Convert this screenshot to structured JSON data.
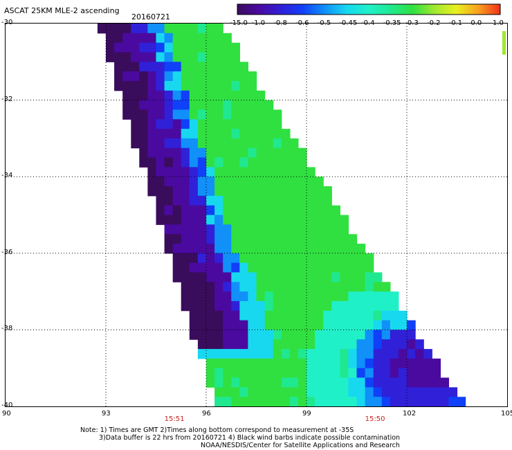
{
  "title": "ASCAT 25KM MLE-2 ascending",
  "date": "20160721",
  "colorbar": {
    "labels": [
      "-15.0",
      "-1.0",
      "-0.8",
      "-0.6",
      "-0.5",
      "-0.45",
      "-0.4",
      "-0.35",
      "-0.3",
      "-0.2",
      "-0.1",
      "0.0",
      "1.0"
    ],
    "colors": [
      "#3a0c5c",
      "#4a0aa0",
      "#3020d8",
      "#1040f8",
      "#1090f8",
      "#18d8f0",
      "#20f0c8",
      "#20e890",
      "#30e040",
      "#a0e830",
      "#e8f020",
      "#f8a020",
      "#f03018"
    ]
  },
  "axes": {
    "lat_labels": [
      "-30",
      "-32",
      "-34",
      "-36",
      "-38",
      "-40"
    ],
    "lon_labels": [
      "90",
      "93",
      "96",
      "99",
      "102",
      "105"
    ],
    "lat_range": [
      -40,
      -30
    ],
    "lon_range": [
      90,
      105
    ]
  },
  "times": [
    {
      "label": "15:51",
      "lon": 95
    },
    {
      "label": "15:50",
      "lon": 101
    }
  ],
  "notes": {
    "line1": "Note: 1) Times are GMT 2)Times along bottom correspond to measurement at -35S",
    "line2": "3)Data buffer is 22 hrs from 20160721 4) Black wind barbs indicate possible contamination",
    "line3": "NOAA/NESDIS/Center for Satellite Applications and Research"
  },
  "map": {
    "swath_left_lon": {
      "lat_-30": 92.8,
      "lat_-40": 96.3
    },
    "swath_right_lon": {
      "lat_-30": 96.4,
      "lat_-40": 103.7
    },
    "regions": [
      {
        "name": "west-edge-low",
        "value": -1.0
      },
      {
        "name": "center-field",
        "value": -0.25
      },
      {
        "name": "southeast-low",
        "value": -0.9
      }
    ]
  }
}
